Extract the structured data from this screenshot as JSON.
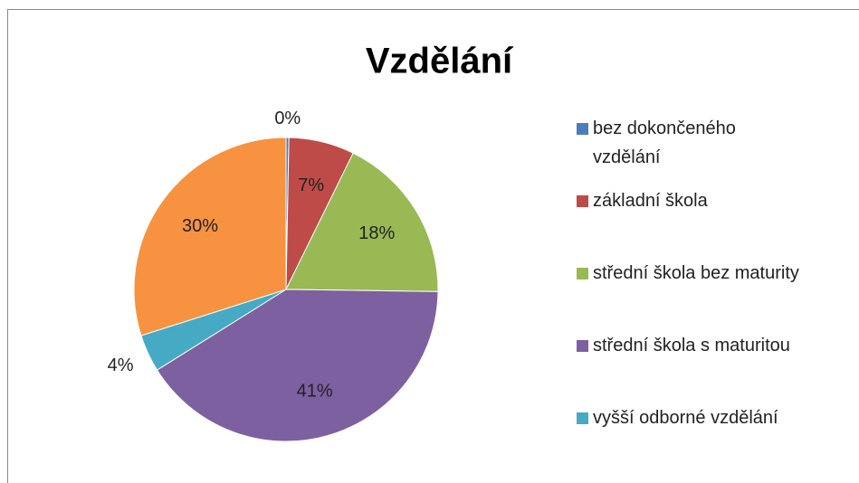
{
  "chart_data": {
    "type": "pie",
    "title": "Vzdělání",
    "categories": [
      "bez dokončeného vzdělání",
      "základní škola",
      "střední škola bez maturity",
      "střední škola s maturitou",
      "vyšší odborné vzdělání",
      null
    ],
    "values": [
      0.3,
      7,
      18,
      41,
      4,
      30
    ],
    "value_labels": [
      "0%",
      "7%",
      "18%",
      "41%",
      "4%",
      "30%"
    ],
    "colors": [
      "#4a7ebb",
      "#be4b48",
      "#98b954",
      "#7d60a0",
      "#46aac5",
      "#f69240"
    ],
    "legend": "right"
  }
}
